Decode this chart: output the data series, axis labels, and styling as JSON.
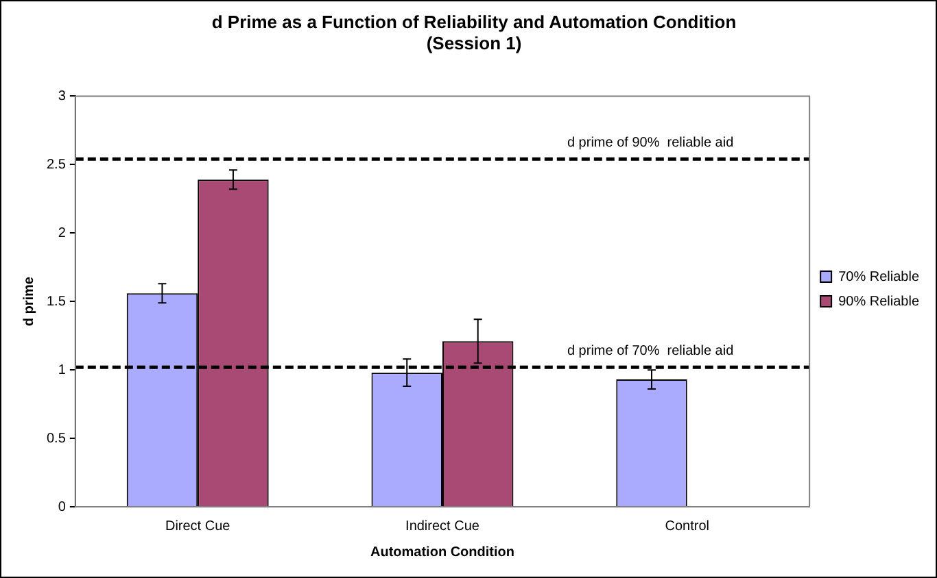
{
  "chart_data": {
    "type": "bar",
    "title": "d Prime as a Function of Reliability and Automation Condition\n(Session 1)",
    "xlabel": "Automation Condition",
    "ylabel": "d prime",
    "categories": [
      "Direct Cue",
      "Indirect Cue",
      "Control"
    ],
    "series": [
      {
        "name": "70% Reliable",
        "color": "#aaaaff",
        "values": [
          1.56,
          0.98,
          0.93
        ],
        "errors": [
          0.07,
          0.1,
          0.07
        ]
      },
      {
        "name": "90% Reliable",
        "color": "#a84a74",
        "values": [
          2.39,
          1.21,
          null
        ],
        "errors": [
          0.07,
          0.16,
          null
        ]
      }
    ],
    "ylim": [
      0,
      3
    ],
    "yticks": [
      0,
      0.5,
      1,
      1.5,
      2,
      2.5,
      3
    ],
    "grid": false,
    "legend": "right",
    "ref_lines": [
      {
        "axis": "y",
        "value": 2.54,
        "label": "d prime of 90%  reliable aid",
        "line_style": "dashed",
        "color": "#000000"
      },
      {
        "axis": "y",
        "value": 1.02,
        "label": "d prime of 70%  reliable aid",
        "line_style": "dashed",
        "color": "#000000"
      }
    ]
  }
}
